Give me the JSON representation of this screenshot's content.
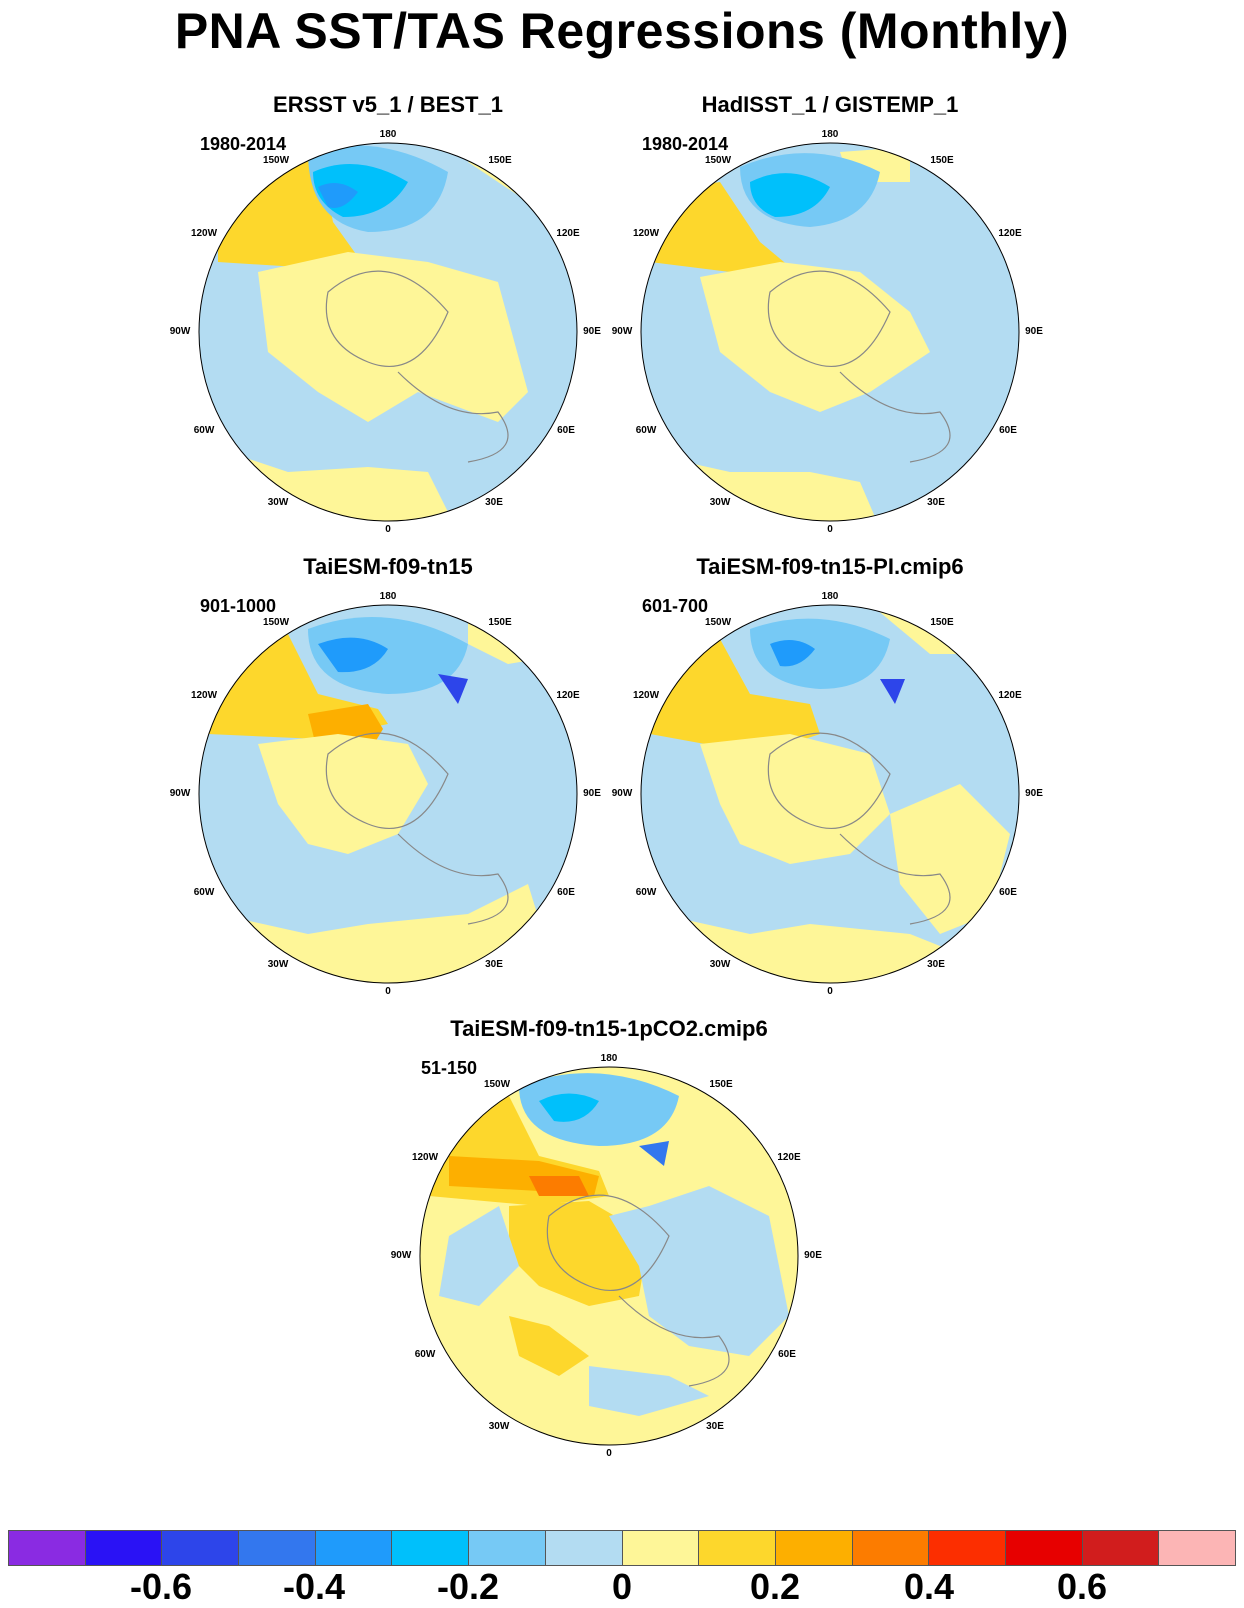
{
  "title": "PNA SST/TAS Regressions (Monthly)",
  "panels": [
    {
      "title": "ERSST v5_1 / BEST_1",
      "period": "1980-2014"
    },
    {
      "title": "HadISST_1 / GISTEMP_1",
      "period": "1980-2014"
    },
    {
      "title": "TaiESM-f09-tn15",
      "period": "901-1000"
    },
    {
      "title": "TaiESM-f09-tn15-PI.cmip6",
      "period": "601-700"
    },
    {
      "title": "TaiESM-f09-tn15-1pCO2.cmip6",
      "period": "51-150"
    }
  ],
  "longitude_labels": [
    "180",
    "150E",
    "120E",
    "90E",
    "60E",
    "30E",
    "0",
    "30W",
    "60W",
    "90W",
    "120W",
    "150W"
  ],
  "colorbar": {
    "colors": [
      "#8a2be2",
      "#2a12f5",
      "#2d45ea",
      "#3377ee",
      "#1f9bfb",
      "#00c0fb",
      "#76c9f5",
      "#b3dcf2",
      "#fef698",
      "#fdd72c",
      "#fdaf00",
      "#fc7c00",
      "#fc2e00",
      "#e70000",
      "#d11d1d",
      "#fcb5b5"
    ],
    "tick_values": [
      "-0.6",
      "-0.4",
      "-0.2",
      "0",
      "0.2",
      "0.4",
      "0.6"
    ]
  }
}
